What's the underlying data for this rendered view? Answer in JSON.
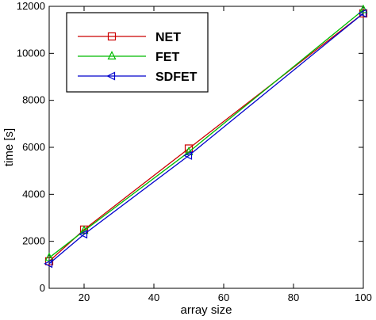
{
  "chart_data": {
    "type": "line",
    "title": "",
    "xlabel": "array size",
    "ylabel": "time [s]",
    "xlim": [
      10,
      100
    ],
    "ylim": [
      0,
      12000
    ],
    "x_ticks": [
      20,
      40,
      60,
      80,
      100
    ],
    "y_ticks": [
      0,
      2000,
      4000,
      6000,
      8000,
      10000,
      12000
    ],
    "grid": false,
    "legend": "top-left",
    "x": [
      10,
      20,
      50,
      100
    ],
    "series": [
      {
        "name": "NET",
        "color": "#cc0000",
        "marker": "square",
        "values": [
          1150,
          2500,
          5950,
          11700
        ]
      },
      {
        "name": "FET",
        "color": "#00bb00",
        "marker": "triangle-up",
        "values": [
          1300,
          2450,
          5800,
          11850
        ]
      },
      {
        "name": "SDFET",
        "color": "#0000cc",
        "marker": "triangle-left",
        "values": [
          1050,
          2300,
          5650,
          11700
        ]
      }
    ]
  }
}
